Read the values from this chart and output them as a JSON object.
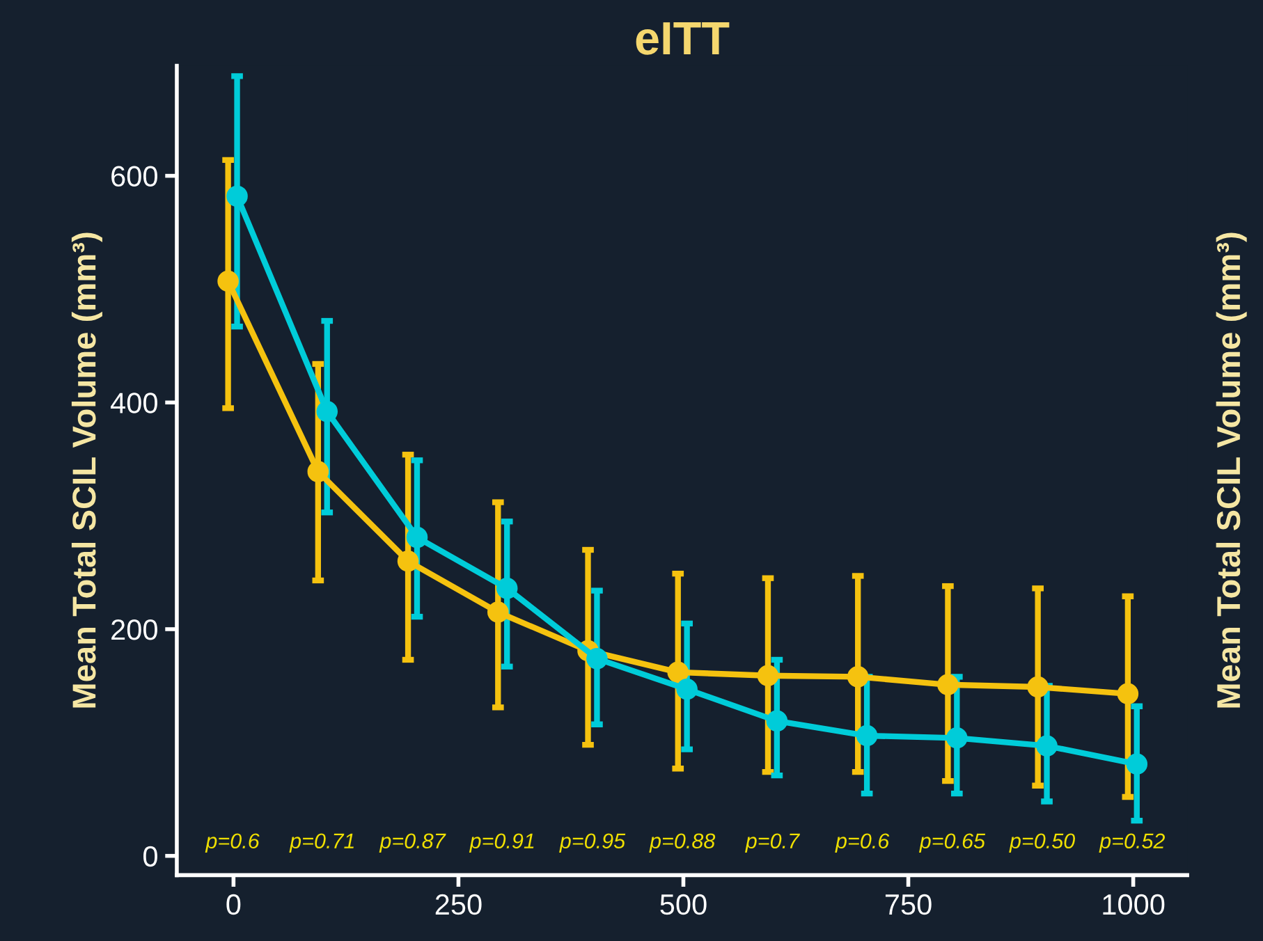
{
  "chart_data": {
    "type": "line",
    "title": "eITT",
    "ylabel": "Mean Total SCIL Volume (mm³)",
    "y2label": "Mean Total SCIL Volume (mm³)",
    "xlim": [
      -63,
      1060
    ],
    "ylim": [
      -17,
      697
    ],
    "xticks": [
      0,
      250,
      500,
      750,
      1000
    ],
    "yticks": [
      0,
      200,
      400,
      600
    ],
    "marker": "circle",
    "line_style": "solid",
    "grid": false,
    "legend": false,
    "series": [
      {
        "color": "#f5c20f",
        "x": [
          -6,
          94,
          194,
          294,
          394,
          494,
          594,
          694,
          794,
          894,
          994
        ],
        "values": [
          507,
          339,
          260,
          215,
          181,
          162,
          159,
          158,
          151,
          149,
          143
        ],
        "errors": [
          [
            395,
            614
          ],
          [
            243,
            434
          ],
          [
            173,
            354
          ],
          [
            131,
            312
          ],
          [
            98,
            270
          ],
          [
            77,
            249
          ],
          [
            74,
            245
          ],
          [
            74,
            247
          ],
          [
            66,
            238
          ],
          [
            62,
            236
          ],
          [
            52,
            229
          ]
        ]
      },
      {
        "color": "#00ccd9",
        "x": [
          4,
          104,
          204,
          304,
          404,
          504,
          604,
          704,
          804,
          904,
          1004
        ],
        "values": [
          582,
          392,
          281,
          236,
          174,
          147,
          119,
          106,
          104,
          97,
          81
        ],
        "errors": [
          [
            467,
            688
          ],
          [
            303,
            472
          ],
          [
            211,
            349
          ],
          [
            167,
            295
          ],
          [
            116,
            234
          ],
          [
            94,
            205
          ],
          [
            71,
            173
          ],
          [
            55,
            158
          ],
          [
            55,
            158
          ],
          [
            48,
            150
          ],
          [
            31,
            132
          ]
        ]
      }
    ],
    "annotations": [
      "p=0.6",
      "p=0.71",
      "p=0.87",
      "p=0.91",
      "p=0.95",
      "p=0.88",
      "p=0.7",
      "p=0.6",
      "p=0.65",
      "p=0.50",
      "p=0.52"
    ]
  }
}
